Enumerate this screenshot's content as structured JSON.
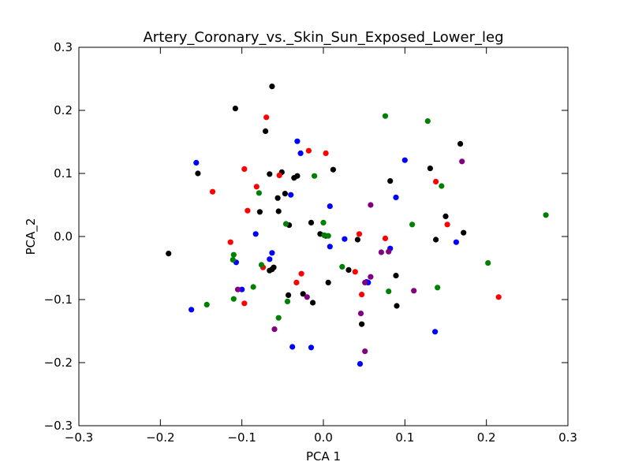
{
  "chart_data": {
    "type": "scatter",
    "title": "Artery_Coronary_vs._Skin_Sun_Exposed_Lower_leg",
    "xlabel": "PCA 1",
    "ylabel": "PCA_2",
    "xlim": [
      -0.3,
      0.3
    ],
    "ylim": [
      -0.3,
      0.3
    ],
    "x_ticks": [
      -0.3,
      -0.2,
      -0.1,
      0.0,
      0.1,
      0.2,
      0.3
    ],
    "y_ticks": [
      -0.3,
      -0.2,
      -0.1,
      0.0,
      0.1,
      0.2,
      0.3
    ],
    "x_tick_labels": [
      "−0.3",
      "−0.2",
      "−0.1",
      "0.0",
      "0.1",
      "0.2",
      "0.3"
    ],
    "y_tick_labels": [
      "−0.3",
      "−0.2",
      "−0.1",
      "0.0",
      "0.1",
      "0.2",
      "0.3"
    ],
    "grid": false,
    "series": [
      {
        "color": "#000000",
        "points": [
          [
            -0.063,
            0.238
          ],
          [
            -0.108,
            0.203
          ],
          [
            -0.071,
            0.167
          ],
          [
            -0.154,
            0.1
          ],
          [
            -0.066,
            0.099
          ],
          [
            -0.051,
            0.102
          ],
          [
            -0.036,
            0.093
          ],
          [
            -0.032,
            0.096
          ],
          [
            0.012,
            0.106
          ],
          [
            -0.047,
            0.068
          ],
          [
            -0.056,
            0.061
          ],
          [
            -0.078,
            0.039
          ],
          [
            -0.055,
            0.04
          ],
          [
            -0.042,
            0.018
          ],
          [
            -0.015,
            0.022
          ],
          [
            -0.004,
            0.004
          ],
          [
            0.003,
            0.001
          ],
          [
            -0.19,
            -0.027
          ],
          [
            -0.061,
            -0.049
          ],
          [
            -0.066,
            -0.054
          ],
          [
            -0.063,
            -0.052
          ],
          [
            0.031,
            -0.053
          ],
          [
            0.006,
            -0.073
          ],
          [
            -0.043,
            -0.093
          ],
          [
            -0.025,
            -0.091
          ],
          [
            -0.013,
            -0.105
          ],
          [
            0.047,
            -0.139
          ],
          [
            0.082,
            0.088
          ],
          [
            0.089,
            -0.062
          ],
          [
            0.09,
            -0.11
          ],
          [
            0.131,
            0.108
          ],
          [
            0.168,
            0.147
          ],
          [
            0.15,
            0.032
          ],
          [
            0.138,
            -0.005
          ],
          [
            0.172,
            0.006
          ],
          [
            0.042,
            -0.005
          ]
        ]
      },
      {
        "color": "#ff0000",
        "points": [
          [
            -0.07,
            0.189
          ],
          [
            -0.018,
            0.136
          ],
          [
            0.003,
            0.132
          ],
          [
            -0.097,
            0.107
          ],
          [
            -0.054,
            0.097
          ],
          [
            -0.136,
            0.071
          ],
          [
            -0.082,
            0.079
          ],
          [
            -0.093,
            0.041
          ],
          [
            -0.114,
            -0.009
          ],
          [
            -0.074,
            -0.049
          ],
          [
            -0.033,
            -0.073
          ],
          [
            -0.027,
            -0.059
          ],
          [
            -0.097,
            -0.106
          ],
          [
            0.039,
            -0.056
          ],
          [
            0.044,
            0.004
          ],
          [
            0.047,
            -0.092
          ],
          [
            0.076,
            -0.003
          ],
          [
            0.138,
            0.087
          ],
          [
            0.152,
            0.019
          ],
          [
            0.215,
            -0.096
          ]
        ]
      },
      {
        "color": "#0000ff",
        "points": [
          [
            -0.156,
            0.117
          ],
          [
            -0.032,
            0.151
          ],
          [
            -0.028,
            0.132
          ],
          [
            -0.04,
            0.066
          ],
          [
            0.1,
            0.121
          ],
          [
            0.008,
            0.048
          ],
          [
            0.089,
            0.062
          ],
          [
            -0.083,
            0.004
          ],
          [
            -0.107,
            -0.041
          ],
          [
            -0.063,
            -0.026
          ],
          [
            -0.066,
            -0.036
          ],
          [
            -0.1,
            -0.084
          ],
          [
            0.008,
            -0.016
          ],
          [
            0.026,
            -0.004
          ],
          [
            0.053,
            -0.072
          ],
          [
            0.055,
            -0.073
          ],
          [
            0.082,
            -0.019
          ],
          [
            -0.162,
            -0.116
          ],
          [
            -0.038,
            -0.175
          ],
          [
            -0.015,
            -0.176
          ],
          [
            0.045,
            -0.202
          ],
          [
            0.137,
            -0.151
          ],
          [
            0.163,
            -0.009
          ]
        ]
      },
      {
        "color": "#008000",
        "points": [
          [
            0.076,
            0.191
          ],
          [
            0.128,
            0.183
          ],
          [
            -0.011,
            0.096
          ],
          [
            0.145,
            0.08
          ],
          [
            -0.079,
            0.069
          ],
          [
            0.273,
            0.034
          ],
          [
            0.0,
            0.022
          ],
          [
            0.109,
            0.019
          ],
          [
            -0.046,
            0.02
          ],
          [
            0.001,
            0.002
          ],
          [
            0.006,
            0.001
          ],
          [
            -0.11,
            -0.029
          ],
          [
            -0.111,
            -0.037
          ],
          [
            -0.076,
            -0.045
          ],
          [
            -0.086,
            -0.08
          ],
          [
            -0.11,
            -0.099
          ],
          [
            -0.143,
            -0.108
          ],
          [
            -0.055,
            -0.129
          ],
          [
            -0.044,
            -0.103
          ],
          [
            0.023,
            -0.048
          ],
          [
            0.08,
            -0.087
          ],
          [
            0.14,
            -0.081
          ],
          [
            0.202,
            -0.042
          ]
        ]
      },
      {
        "color": "#800080",
        "points": [
          [
            0.17,
            0.119
          ],
          [
            0.058,
            0.05
          ],
          [
            0.071,
            -0.025
          ],
          [
            0.08,
            -0.024
          ],
          [
            0.058,
            -0.064
          ],
          [
            0.051,
            -0.073
          ],
          [
            0.111,
            -0.086
          ],
          [
            -0.105,
            -0.084
          ],
          [
            -0.02,
            -0.096
          ],
          [
            -0.06,
            -0.147
          ],
          [
            0.046,
            -0.122
          ],
          [
            0.051,
            -0.182
          ]
        ]
      }
    ]
  }
}
